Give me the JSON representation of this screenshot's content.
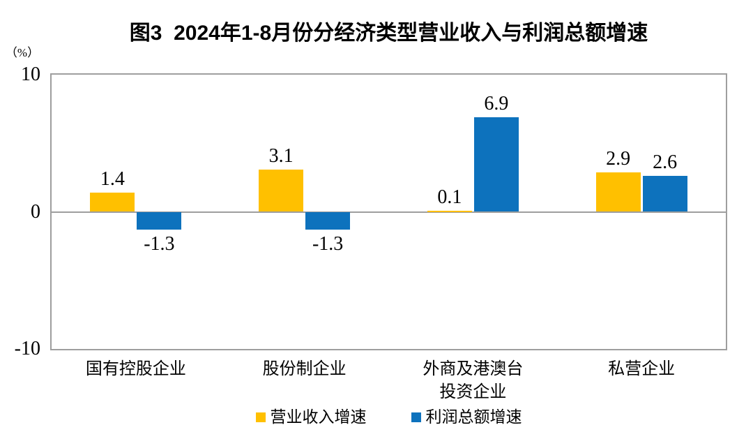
{
  "title": "图3  2024年1-8月份分经济类型营业收入与利润总额增速",
  "chart_data": {
    "type": "bar",
    "categories": [
      "国有控股企业",
      "股份制企业",
      "外商及港澳台\n投资企业",
      "私营企业"
    ],
    "series": [
      {
        "name": "营业收入增速",
        "key": "revenue-growth",
        "color": "#FFC000",
        "values": [
          1.4,
          3.1,
          0.1,
          2.9
        ]
      },
      {
        "name": "利润总额增速",
        "key": "profit-growth",
        "color": "#0D72BD",
        "values": [
          -1.3,
          -1.3,
          6.9,
          2.6
        ]
      }
    ],
    "ylabel": "（%）",
    "ylim": [
      -10,
      10
    ],
    "yticks": [
      10,
      0,
      -10
    ],
    "grid": false,
    "legend_position": "bottom",
    "axis_color": "#9E9E9E",
    "text_color": "#000000",
    "value_label_decimals": 1
  }
}
